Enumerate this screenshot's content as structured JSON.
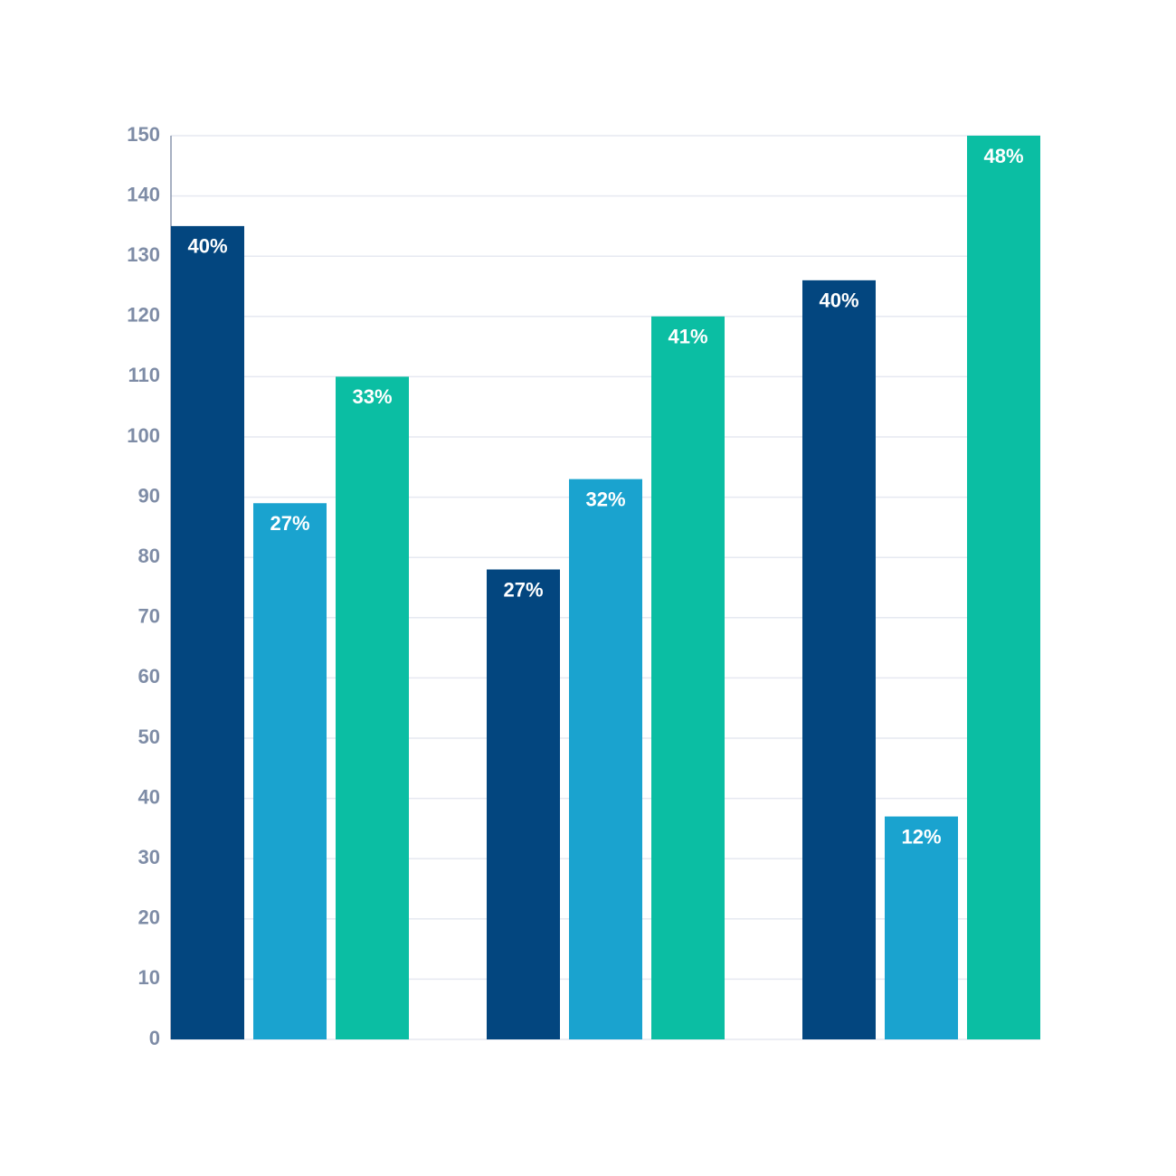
{
  "chart_data": {
    "type": "bar",
    "categories": [
      null,
      null,
      null
    ],
    "series": [
      {
        "color": "#03467f",
        "values": [
          135,
          78,
          126
        ],
        "share_labels": [
          "40%",
          "27%",
          "40%"
        ]
      },
      {
        "color": "#1aa3cf",
        "values": [
          89,
          93,
          37
        ],
        "share_labels": [
          "27%",
          "32%",
          "12%"
        ]
      },
      {
        "color": "#0bbea3",
        "values": [
          110,
          120,
          150
        ],
        "share_labels": [
          "33%",
          "41%",
          "48%"
        ]
      }
    ],
    "ylim": [
      0,
      150
    ],
    "yticks": [
      0,
      10,
      20,
      30,
      40,
      50,
      60,
      70,
      80,
      90,
      100,
      110,
      120,
      130,
      140,
      150
    ],
    "grid": true
  }
}
